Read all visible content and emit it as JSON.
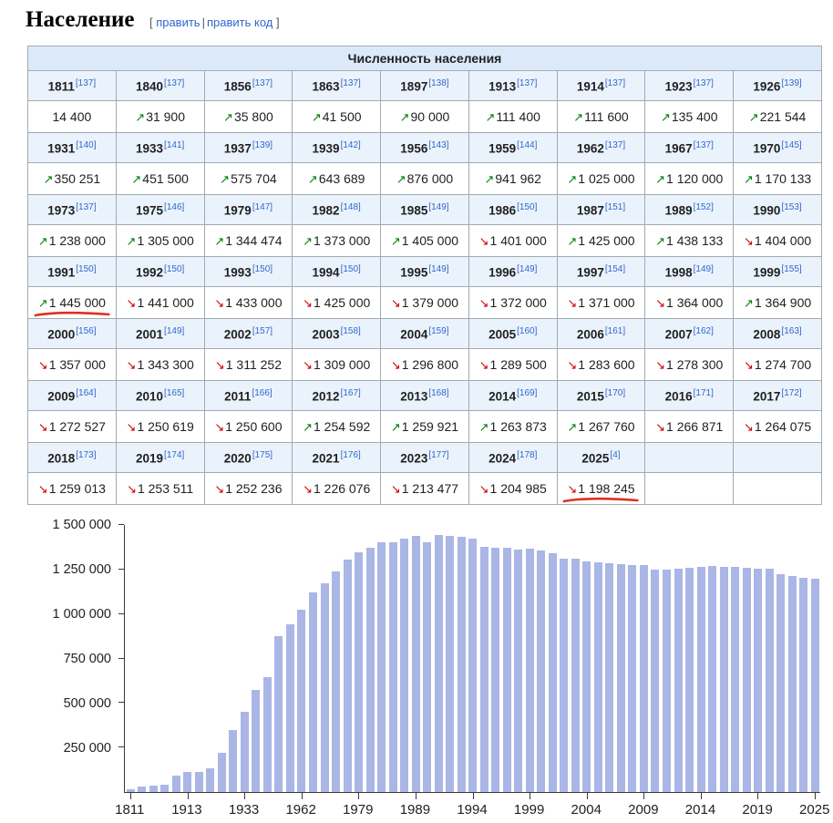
{
  "page": {
    "title": "Население",
    "edit": {
      "bracket_open": "[",
      "edit_label": "править",
      "separator": "|",
      "edit_code_label": "править код",
      "bracket_close": "]"
    }
  },
  "annotations": {
    "marker_color": "#e0301e"
  },
  "table": {
    "title": "Численность населения",
    "columns": 9,
    "groups": [
      {
        "years": [
          {
            "y": "1811",
            "ref": "137"
          },
          {
            "y": "1840",
            "ref": "137"
          },
          {
            "y": "1856",
            "ref": "137"
          },
          {
            "y": "1863",
            "ref": "137"
          },
          {
            "y": "1897",
            "ref": "138"
          },
          {
            "y": "1913",
            "ref": "137"
          },
          {
            "y": "1914",
            "ref": "137"
          },
          {
            "y": "1923",
            "ref": "137"
          },
          {
            "y": "1926",
            "ref": "139"
          }
        ],
        "values": [
          {
            "a": "",
            "v": "14 400"
          },
          {
            "a": "up",
            "v": "31 900"
          },
          {
            "a": "up",
            "v": "35 800"
          },
          {
            "a": "up",
            "v": "41 500"
          },
          {
            "a": "up",
            "v": "90 000"
          },
          {
            "a": "up",
            "v": "111 400"
          },
          {
            "a": "up",
            "v": "111 600"
          },
          {
            "a": "up",
            "v": "135 400"
          },
          {
            "a": "up",
            "v": "221 544"
          }
        ]
      },
      {
        "years": [
          {
            "y": "1931",
            "ref": "140"
          },
          {
            "y": "1933",
            "ref": "141"
          },
          {
            "y": "1937",
            "ref": "139"
          },
          {
            "y": "1939",
            "ref": "142"
          },
          {
            "y": "1956",
            "ref": "143"
          },
          {
            "y": "1959",
            "ref": "144"
          },
          {
            "y": "1962",
            "ref": "137"
          },
          {
            "y": "1967",
            "ref": "137"
          },
          {
            "y": "1970",
            "ref": "145"
          }
        ],
        "values": [
          {
            "a": "up",
            "v": "350 251"
          },
          {
            "a": "up",
            "v": "451 500"
          },
          {
            "a": "up",
            "v": "575 704"
          },
          {
            "a": "up",
            "v": "643 689"
          },
          {
            "a": "up",
            "v": "876 000"
          },
          {
            "a": "up",
            "v": "941 962"
          },
          {
            "a": "up",
            "v": "1 025 000"
          },
          {
            "a": "up",
            "v": "1 120 000"
          },
          {
            "a": "up",
            "v": "1 170 133"
          }
        ]
      },
      {
        "years": [
          {
            "y": "1973",
            "ref": "137"
          },
          {
            "y": "1975",
            "ref": "146"
          },
          {
            "y": "1979",
            "ref": "147"
          },
          {
            "y": "1982",
            "ref": "148"
          },
          {
            "y": "1985",
            "ref": "149"
          },
          {
            "y": "1986",
            "ref": "150"
          },
          {
            "y": "1987",
            "ref": "151"
          },
          {
            "y": "1989",
            "ref": "152"
          },
          {
            "y": "1990",
            "ref": "153"
          }
        ],
        "values": [
          {
            "a": "up",
            "v": "1 238 000"
          },
          {
            "a": "up",
            "v": "1 305 000"
          },
          {
            "a": "up",
            "v": "1 344 474"
          },
          {
            "a": "up",
            "v": "1 373 000"
          },
          {
            "a": "up",
            "v": "1 405 000"
          },
          {
            "a": "down",
            "v": "1 401 000"
          },
          {
            "a": "up",
            "v": "1 425 000"
          },
          {
            "a": "up",
            "v": "1 438 133"
          },
          {
            "a": "down",
            "v": "1 404 000"
          }
        ]
      },
      {
        "years": [
          {
            "y": "1991",
            "ref": "150"
          },
          {
            "y": "1992",
            "ref": "150"
          },
          {
            "y": "1993",
            "ref": "150"
          },
          {
            "y": "1994",
            "ref": "150"
          },
          {
            "y": "1995",
            "ref": "149"
          },
          {
            "y": "1996",
            "ref": "149"
          },
          {
            "y": "1997",
            "ref": "154"
          },
          {
            "y": "1998",
            "ref": "149"
          },
          {
            "y": "1999",
            "ref": "155"
          }
        ],
        "values": [
          {
            "a": "up",
            "v": "1 445 000",
            "mark": true
          },
          {
            "a": "down",
            "v": "1 441 000"
          },
          {
            "a": "down",
            "v": "1 433 000"
          },
          {
            "a": "down",
            "v": "1 425 000"
          },
          {
            "a": "down",
            "v": "1 379 000"
          },
          {
            "a": "down",
            "v": "1 372 000"
          },
          {
            "a": "down",
            "v": "1 371 000"
          },
          {
            "a": "down",
            "v": "1 364 000"
          },
          {
            "a": "up",
            "v": "1 364 900"
          }
        ]
      },
      {
        "years": [
          {
            "y": "2000",
            "ref": "156"
          },
          {
            "y": "2001",
            "ref": "149"
          },
          {
            "y": "2002",
            "ref": "157"
          },
          {
            "y": "2003",
            "ref": "158"
          },
          {
            "y": "2004",
            "ref": "159"
          },
          {
            "y": "2005",
            "ref": "160"
          },
          {
            "y": "2006",
            "ref": "161"
          },
          {
            "y": "2007",
            "ref": "162"
          },
          {
            "y": "2008",
            "ref": "163"
          }
        ],
        "values": [
          {
            "a": "down",
            "v": "1 357 000"
          },
          {
            "a": "down",
            "v": "1 343 300"
          },
          {
            "a": "down",
            "v": "1 311 252"
          },
          {
            "a": "down",
            "v": "1 309 000"
          },
          {
            "a": "down",
            "v": "1 296 800"
          },
          {
            "a": "down",
            "v": "1 289 500"
          },
          {
            "a": "down",
            "v": "1 283 600"
          },
          {
            "a": "down",
            "v": "1 278 300"
          },
          {
            "a": "down",
            "v": "1 274 700"
          }
        ]
      },
      {
        "years": [
          {
            "y": "2009",
            "ref": "164"
          },
          {
            "y": "2010",
            "ref": "165"
          },
          {
            "y": "2011",
            "ref": "166"
          },
          {
            "y": "2012",
            "ref": "167"
          },
          {
            "y": "2013",
            "ref": "168"
          },
          {
            "y": "2014",
            "ref": "169"
          },
          {
            "y": "2015",
            "ref": "170"
          },
          {
            "y": "2016",
            "ref": "171"
          },
          {
            "y": "2017",
            "ref": "172"
          }
        ],
        "values": [
          {
            "a": "down",
            "v": "1 272 527"
          },
          {
            "a": "down",
            "v": "1 250 619"
          },
          {
            "a": "down",
            "v": "1 250 600"
          },
          {
            "a": "up",
            "v": "1 254 592"
          },
          {
            "a": "up",
            "v": "1 259 921"
          },
          {
            "a": "up",
            "v": "1 263 873"
          },
          {
            "a": "up",
            "v": "1 267 760"
          },
          {
            "a": "down",
            "v": "1 266 871"
          },
          {
            "a": "down",
            "v": "1 264 075"
          }
        ]
      },
      {
        "years": [
          {
            "y": "2018",
            "ref": "173"
          },
          {
            "y": "2019",
            "ref": "174"
          },
          {
            "y": "2020",
            "ref": "175"
          },
          {
            "y": "2021",
            "ref": "176"
          },
          {
            "y": "2023",
            "ref": "177"
          },
          {
            "y": "2024",
            "ref": "178"
          },
          {
            "y": "2025",
            "ref": "4"
          },
          null,
          null
        ],
        "values": [
          {
            "a": "down",
            "v": "1 259 013"
          },
          {
            "a": "down",
            "v": "1 253 511"
          },
          {
            "a": "down",
            "v": "1 252 236"
          },
          {
            "a": "down",
            "v": "1 226 076"
          },
          {
            "a": "down",
            "v": "1 213 477"
          },
          {
            "a": "down",
            "v": "1 204 985"
          },
          {
            "a": "down",
            "v": "1 198 245",
            "mark": true
          },
          null,
          null
        ]
      }
    ]
  },
  "chart_data": {
    "type": "bar",
    "title": "",
    "xlabel": "",
    "ylabel": "",
    "ylim": [
      0,
      1500000
    ],
    "grid": false,
    "bar_color": "#aab6e6",
    "x": [
      1811,
      1840,
      1856,
      1863,
      1897,
      1913,
      1914,
      1923,
      1926,
      1931,
      1933,
      1937,
      1939,
      1956,
      1959,
      1962,
      1967,
      1970,
      1973,
      1975,
      1979,
      1982,
      1985,
      1986,
      1987,
      1989,
      1990,
      1991,
      1992,
      1993,
      1994,
      1995,
      1996,
      1997,
      1998,
      1999,
      2000,
      2001,
      2002,
      2003,
      2004,
      2005,
      2006,
      2007,
      2008,
      2009,
      2010,
      2011,
      2012,
      2013,
      2014,
      2015,
      2016,
      2017,
      2018,
      2019,
      2020,
      2021,
      2023,
      2024,
      2025
    ],
    "values": [
      14400,
      31900,
      35800,
      41500,
      90000,
      111400,
      111600,
      135400,
      221544,
      350251,
      451500,
      575704,
      643689,
      876000,
      941962,
      1025000,
      1120000,
      1170133,
      1238000,
      1305000,
      1344474,
      1373000,
      1405000,
      1401000,
      1425000,
      1438133,
      1404000,
      1445000,
      1441000,
      1433000,
      1425000,
      1379000,
      1372000,
      1371000,
      1364000,
      1364900,
      1357000,
      1343300,
      1311252,
      1309000,
      1296800,
      1289500,
      1283600,
      1278300,
      1274700,
      1272527,
      1250619,
      1250600,
      1254592,
      1259921,
      1263873,
      1267760,
      1266871,
      1264075,
      1259013,
      1253511,
      1252236,
      1226076,
      1213477,
      1204985,
      1198245
    ],
    "y_ticks": [
      {
        "label": "250 000",
        "value": 250000
      },
      {
        "label": "500 000",
        "value": 500000
      },
      {
        "label": "750 000",
        "value": 750000
      },
      {
        "label": "1 000 000",
        "value": 1000000
      },
      {
        "label": "1 250 000",
        "value": 1250000
      },
      {
        "label": "1 500 000",
        "value": 1500000
      }
    ],
    "x_tick_every": 5
  }
}
